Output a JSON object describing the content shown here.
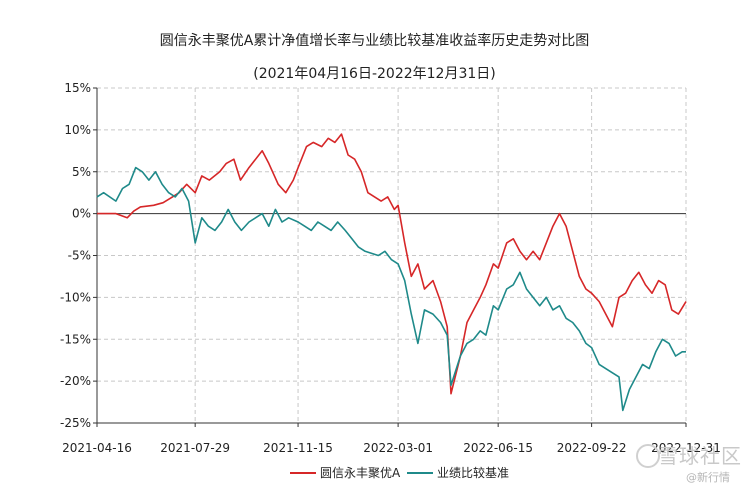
{
  "chart_data": {
    "type": "line",
    "title": "圆信永丰聚优A累计净值增长率与业绩比较基准收益率历史走势对比图",
    "subtitle": "(2021年04月16日-2022年12月31日)",
    "x_ticks": [
      "2021-04-16",
      "2021-07-29",
      "2021-11-15",
      "2022-03-01",
      "2022-06-15",
      "2022-09-22",
      "2022-12-31"
    ],
    "x_start": "2021-04-16",
    "x_end": "2022-12-31",
    "y_ticks": [
      "15%",
      "10%",
      "5%",
      "0%",
      "-5%",
      "-10%",
      "-15%",
      "-20%",
      "-25%"
    ],
    "ylim": [
      -25,
      15
    ],
    "grid": true,
    "legend_position": "bottom",
    "series": [
      {
        "name": "圆信永丰聚优A",
        "color": "#d62728",
        "points": [
          [
            "2021-04-16",
            0.0
          ],
          [
            "2021-05-06",
            0.0
          ],
          [
            "2021-05-18",
            -0.5
          ],
          [
            "2021-05-25",
            0.3
          ],
          [
            "2021-06-01",
            0.8
          ],
          [
            "2021-06-15",
            1.0
          ],
          [
            "2021-06-25",
            1.3
          ],
          [
            "2021-07-05",
            2.0
          ],
          [
            "2021-07-12",
            2.5
          ],
          [
            "2021-07-20",
            3.5
          ],
          [
            "2021-07-29",
            2.5
          ],
          [
            "2021-08-05",
            4.5
          ],
          [
            "2021-08-13",
            4.0
          ],
          [
            "2021-08-24",
            5.0
          ],
          [
            "2021-08-31",
            6.0
          ],
          [
            "2021-09-08",
            6.5
          ],
          [
            "2021-09-15",
            4.0
          ],
          [
            "2021-09-24",
            5.5
          ],
          [
            "2021-10-08",
            7.5
          ],
          [
            "2021-10-15",
            6.0
          ],
          [
            "2021-10-25",
            3.5
          ],
          [
            "2021-11-02",
            2.5
          ],
          [
            "2021-11-10",
            4.0
          ],
          [
            "2021-11-15",
            5.5
          ],
          [
            "2021-11-24",
            8.0
          ],
          [
            "2021-12-01",
            8.5
          ],
          [
            "2021-12-10",
            8.0
          ],
          [
            "2021-12-17",
            9.0
          ],
          [
            "2021-12-24",
            8.5
          ],
          [
            "2021-12-31",
            9.5
          ],
          [
            "2022-01-07",
            7.0
          ],
          [
            "2022-01-14",
            6.5
          ],
          [
            "2022-01-21",
            5.0
          ],
          [
            "2022-01-28",
            2.5
          ],
          [
            "2022-02-11",
            1.5
          ],
          [
            "2022-02-18",
            2.0
          ],
          [
            "2022-02-25",
            0.5
          ],
          [
            "2022-03-01",
            1.0
          ],
          [
            "2022-03-08",
            -3.5
          ],
          [
            "2022-03-15",
            -7.5
          ],
          [
            "2022-03-22",
            -6.0
          ],
          [
            "2022-03-29",
            -9.0
          ],
          [
            "2022-04-07",
            -8.0
          ],
          [
            "2022-04-15",
            -10.5
          ],
          [
            "2022-04-22",
            -13.5
          ],
          [
            "2022-04-26",
            -21.5
          ],
          [
            "2022-05-06",
            -17.0
          ],
          [
            "2022-05-13",
            -13.0
          ],
          [
            "2022-05-20",
            -11.5
          ],
          [
            "2022-05-27",
            -10.0
          ],
          [
            "2022-06-02",
            -8.5
          ],
          [
            "2022-06-10",
            -6.0
          ],
          [
            "2022-06-15",
            -6.5
          ],
          [
            "2022-06-24",
            -3.5
          ],
          [
            "2022-07-01",
            -3.0
          ],
          [
            "2022-07-08",
            -4.5
          ],
          [
            "2022-07-15",
            -5.5
          ],
          [
            "2022-07-22",
            -4.5
          ],
          [
            "2022-07-29",
            -5.5
          ],
          [
            "2022-08-05",
            -3.5
          ],
          [
            "2022-08-12",
            -1.5
          ],
          [
            "2022-08-19",
            0.0
          ],
          [
            "2022-08-26",
            -1.5
          ],
          [
            "2022-09-02",
            -4.5
          ],
          [
            "2022-09-09",
            -7.5
          ],
          [
            "2022-09-16",
            -9.0
          ],
          [
            "2022-09-22",
            -9.5
          ],
          [
            "2022-09-30",
            -10.5
          ],
          [
            "2022-10-14",
            -13.5
          ],
          [
            "2022-10-21",
            -10.0
          ],
          [
            "2022-10-28",
            -9.5
          ],
          [
            "2022-11-04",
            -8.0
          ],
          [
            "2022-11-11",
            -7.0
          ],
          [
            "2022-11-18",
            -8.5
          ],
          [
            "2022-11-25",
            -9.5
          ],
          [
            "2022-12-02",
            -8.0
          ],
          [
            "2022-12-09",
            -8.5
          ],
          [
            "2022-12-16",
            -11.5
          ],
          [
            "2022-12-23",
            -12.0
          ],
          [
            "2022-12-31",
            -10.5
          ]
        ]
      },
      {
        "name": "业绩比较基准",
        "color": "#1f8a8a",
        "points": [
          [
            "2021-04-16",
            2.0
          ],
          [
            "2021-04-23",
            2.5
          ],
          [
            "2021-05-06",
            1.5
          ],
          [
            "2021-05-13",
            3.0
          ],
          [
            "2021-05-20",
            3.5
          ],
          [
            "2021-05-27",
            5.5
          ],
          [
            "2021-06-03",
            5.0
          ],
          [
            "2021-06-10",
            4.0
          ],
          [
            "2021-06-17",
            5.0
          ],
          [
            "2021-06-24",
            3.5
          ],
          [
            "2021-07-01",
            2.5
          ],
          [
            "2021-07-08",
            2.0
          ],
          [
            "2021-07-15",
            3.0
          ],
          [
            "2021-07-22",
            1.5
          ],
          [
            "2021-07-29",
            -3.5
          ],
          [
            "2021-08-05",
            -0.5
          ],
          [
            "2021-08-12",
            -1.5
          ],
          [
            "2021-08-19",
            -2.0
          ],
          [
            "2021-08-26",
            -1.0
          ],
          [
            "2021-09-02",
            0.5
          ],
          [
            "2021-09-09",
            -1.0
          ],
          [
            "2021-09-16",
            -2.0
          ],
          [
            "2021-09-24",
            -1.0
          ],
          [
            "2021-10-08",
            0.0
          ],
          [
            "2021-10-15",
            -1.5
          ],
          [
            "2021-10-22",
            0.5
          ],
          [
            "2021-10-29",
            -1.0
          ],
          [
            "2021-11-05",
            -0.5
          ],
          [
            "2021-11-15",
            -1.0
          ],
          [
            "2021-11-22",
            -1.5
          ],
          [
            "2021-11-29",
            -2.0
          ],
          [
            "2021-12-06",
            -1.0
          ],
          [
            "2021-12-13",
            -1.5
          ],
          [
            "2021-12-20",
            -2.0
          ],
          [
            "2021-12-27",
            -1.0
          ],
          [
            "2022-01-04",
            -2.0
          ],
          [
            "2022-01-11",
            -3.0
          ],
          [
            "2022-01-18",
            -4.0
          ],
          [
            "2022-01-25",
            -4.5
          ],
          [
            "2022-02-08",
            -5.0
          ],
          [
            "2022-02-15",
            -4.5
          ],
          [
            "2022-02-22",
            -5.5
          ],
          [
            "2022-03-01",
            -6.0
          ],
          [
            "2022-03-08",
            -8.0
          ],
          [
            "2022-03-15",
            -12.0
          ],
          [
            "2022-03-22",
            -15.5
          ],
          [
            "2022-03-29",
            -11.5
          ],
          [
            "2022-04-07",
            -12.0
          ],
          [
            "2022-04-15",
            -13.0
          ],
          [
            "2022-04-22",
            -14.5
          ],
          [
            "2022-04-26",
            -20.5
          ],
          [
            "2022-05-06",
            -17.0
          ],
          [
            "2022-05-13",
            -15.5
          ],
          [
            "2022-05-20",
            -15.0
          ],
          [
            "2022-05-27",
            -14.0
          ],
          [
            "2022-06-02",
            -14.5
          ],
          [
            "2022-06-10",
            -11.0
          ],
          [
            "2022-06-15",
            -11.5
          ],
          [
            "2022-06-24",
            -9.0
          ],
          [
            "2022-07-01",
            -8.5
          ],
          [
            "2022-07-08",
            -7.0
          ],
          [
            "2022-07-15",
            -9.0
          ],
          [
            "2022-07-22",
            -10.0
          ],
          [
            "2022-07-29",
            -11.0
          ],
          [
            "2022-08-05",
            -10.0
          ],
          [
            "2022-08-12",
            -11.5
          ],
          [
            "2022-08-19",
            -11.0
          ],
          [
            "2022-08-26",
            -12.5
          ],
          [
            "2022-09-02",
            -13.0
          ],
          [
            "2022-09-09",
            -14.0
          ],
          [
            "2022-09-16",
            -15.5
          ],
          [
            "2022-09-22",
            -16.0
          ],
          [
            "2022-09-30",
            -18.0
          ],
          [
            "2022-10-14",
            -19.0
          ],
          [
            "2022-10-21",
            -19.5
          ],
          [
            "2022-10-25",
            -23.5
          ],
          [
            "2022-11-01",
            -21.0
          ],
          [
            "2022-11-08",
            -19.5
          ],
          [
            "2022-11-15",
            -18.0
          ],
          [
            "2022-11-22",
            -18.5
          ],
          [
            "2022-11-29",
            -16.5
          ],
          [
            "2022-12-06",
            -15.0
          ],
          [
            "2022-12-13",
            -15.5
          ],
          [
            "2022-12-20",
            -17.0
          ],
          [
            "2022-12-27",
            -16.5
          ],
          [
            "2022-12-31",
            -16.5
          ]
        ]
      }
    ]
  },
  "watermark": {
    "brand": "雪球社区",
    "sub": "@新行情"
  }
}
